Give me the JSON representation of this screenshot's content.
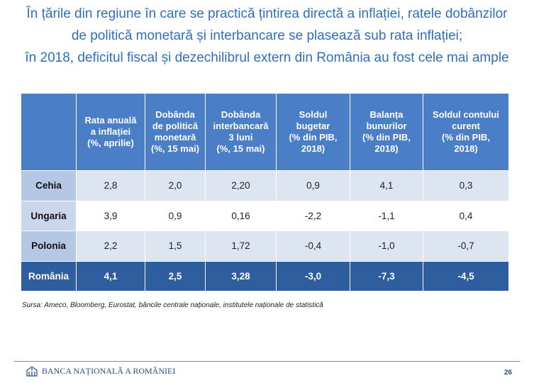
{
  "title_lines": [
    "În țările din regiune în care se practică țintirea directă a inflației, ratele dobânzilor",
    "de politică monetară și interbancare se plasează sub rata inflației;",
    "în 2018, deficitul fiscal și dezechilibrul extern din România au fost cele mai ample"
  ],
  "table": {
    "headers": [
      "Rata anuală\na inflației\n(%, aprilie)",
      "Dobânda\nde politică\nmonetară\n(%, 15 mai)",
      "Dobânda\ninterbancară\n3 luni\n(%, 15 mai)",
      "Soldul\nbugetar\n(% din PIB,\n2018)",
      "Balanța\nbunurilor\n(% din PIB,\n2018)",
      "Soldul contului\ncurent\n(% din PIB,\n2018)"
    ],
    "rows": [
      {
        "country": "Cehia",
        "values": [
          "2,8",
          "2,0",
          "2,20",
          "0,9",
          "4,1",
          "0,3"
        ]
      },
      {
        "country": "Ungaria",
        "values": [
          "3,9",
          "0,9",
          "0,16",
          "-2,2",
          "-1,1",
          "0,4"
        ]
      },
      {
        "country": "Polonia",
        "values": [
          "2,2",
          "1,5",
          "1,72",
          "-0,4",
          "-1,0",
          "-0,7"
        ]
      },
      {
        "country": "România",
        "values": [
          "4,1",
          "2,5",
          "3,28",
          "-3,0",
          "-7,3",
          "-4,5"
        ]
      }
    ]
  },
  "source": "Sursa: Ameco, Bloomberg, Eurostat, băncile centrale naționale, institutele naționale de statistică",
  "footer": {
    "logo_text": "BANCA NAȚIONALĂ A ROMÂNIEI",
    "page_number": "26"
  },
  "colors": {
    "title": "#2e6fc0",
    "header_bg": "#4a7ec7",
    "highlight_row_bg": "#2f5e9e",
    "label_bg": "#b4c7e4",
    "alt_row_bg": "#dde5f1"
  }
}
